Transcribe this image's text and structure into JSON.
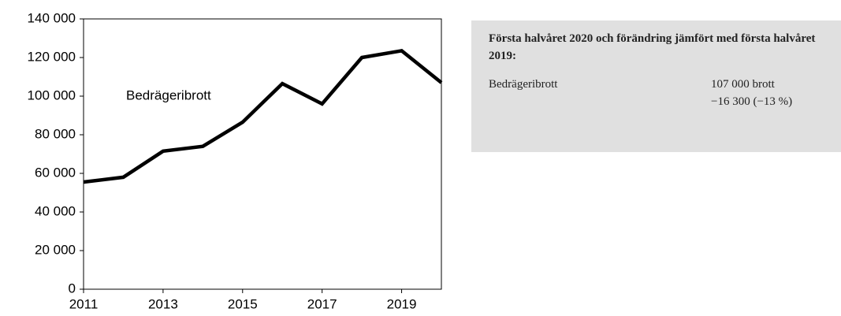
{
  "chart_data": {
    "type": "line",
    "annotation": "Bedrägeribrott",
    "x": [
      2011,
      2012,
      2013,
      2014,
      2015,
      2016,
      2017,
      2018,
      2019,
      2020
    ],
    "values": [
      55500,
      58000,
      71500,
      74000,
      86500,
      106500,
      96000,
      120000,
      123500,
      107000
    ],
    "color": "#000000",
    "xlim": [
      2011,
      2020
    ],
    "xticks": [
      2011,
      2013,
      2015,
      2017,
      2019
    ],
    "ylim": [
      0,
      140000
    ],
    "yticks": [
      0,
      {
        "value": 20000,
        "label": "20 000"
      },
      {
        "value": 40000,
        "label": "40 000"
      },
      {
        "value": 60000,
        "label": "60 000"
      },
      {
        "value": 80000,
        "label": "80 000"
      },
      {
        "value": 100000,
        "label": "100 000"
      },
      {
        "value": 120000,
        "label": "120 000"
      },
      {
        "value": 140000,
        "label": "140 000"
      }
    ]
  },
  "info_box": {
    "title": "Första halvåret 2020 och förändring jämfört med första halvåret 2019:",
    "rows": [
      {
        "label": "Bedrägeribrott",
        "value": "107 000 brott",
        "change": "−16 300 (−13 %)"
      }
    ]
  }
}
